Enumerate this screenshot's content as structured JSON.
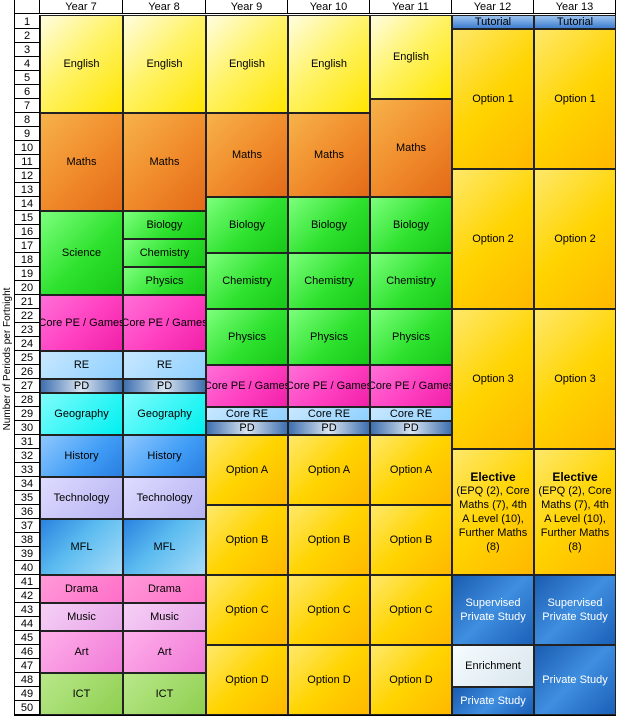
{
  "chart_data": {
    "type": "table",
    "ylabel": "Number of Periods per Fortnight",
    "columns": [
      "Year 7",
      "Year 8",
      "Year 9",
      "Year 10",
      "Year 11",
      "Year 12",
      "Year 13"
    ],
    "periods": [
      "1",
      "2",
      "3",
      "4",
      "5",
      "6",
      "7",
      "8",
      "9",
      "10",
      "11",
      "12",
      "13",
      "14",
      "15",
      "16",
      "17",
      "18",
      "19",
      "20",
      "21",
      "22",
      "23",
      "24",
      "25",
      "26",
      "27",
      "28",
      "29",
      "30",
      "31",
      "32",
      "33",
      "34",
      "35",
      "36",
      "37",
      "38",
      "39",
      "40",
      "41",
      "42",
      "43",
      "44",
      "45",
      "46",
      "47",
      "48",
      "49",
      "50"
    ],
    "blocks": [
      {
        "col": 0,
        "start": 1,
        "end": 7,
        "label": "English",
        "style": "english"
      },
      {
        "col": 0,
        "start": 8,
        "end": 14,
        "label": "Maths",
        "style": "maths"
      },
      {
        "col": 0,
        "start": 15,
        "end": 20,
        "label": "Science",
        "style": "green"
      },
      {
        "col": 0,
        "start": 21,
        "end": 24,
        "label": "Core PE / Games",
        "style": "pe"
      },
      {
        "col": 0,
        "start": 25,
        "end": 26,
        "label": "RE",
        "style": "re"
      },
      {
        "col": 0,
        "start": 27,
        "end": 27,
        "label": "PD",
        "style": "pd"
      },
      {
        "col": 0,
        "start": 28,
        "end": 30,
        "label": "Geography",
        "style": "geo"
      },
      {
        "col": 0,
        "start": 31,
        "end": 33,
        "label": "History",
        "style": "history"
      },
      {
        "col": 0,
        "start": 34,
        "end": 36,
        "label": "Technology",
        "style": "tech"
      },
      {
        "col": 0,
        "start": 37,
        "end": 40,
        "label": "MFL",
        "style": "mfl"
      },
      {
        "col": 0,
        "start": 41,
        "end": 42,
        "label": "Drama",
        "style": "drama"
      },
      {
        "col": 0,
        "start": 43,
        "end": 44,
        "label": "Music",
        "style": "music"
      },
      {
        "col": 0,
        "start": 45,
        "end": 47,
        "label": "Art",
        "style": "art"
      },
      {
        "col": 0,
        "start": 48,
        "end": 50,
        "label": "ICT",
        "style": "ict"
      },
      {
        "col": 1,
        "start": 1,
        "end": 7,
        "label": "English",
        "style": "english"
      },
      {
        "col": 1,
        "start": 8,
        "end": 14,
        "label": "Maths",
        "style": "maths"
      },
      {
        "col": 1,
        "start": 15,
        "end": 16,
        "label": "Biology",
        "style": "green"
      },
      {
        "col": 1,
        "start": 17,
        "end": 18,
        "label": "Chemistry",
        "style": "green"
      },
      {
        "col": 1,
        "start": 19,
        "end": 20,
        "label": "Physics",
        "style": "green"
      },
      {
        "col": 1,
        "start": 21,
        "end": 24,
        "label": "Core PE / Games",
        "style": "pe"
      },
      {
        "col": 1,
        "start": 25,
        "end": 26,
        "label": "RE",
        "style": "re"
      },
      {
        "col": 1,
        "start": 27,
        "end": 27,
        "label": "PD",
        "style": "pd"
      },
      {
        "col": 1,
        "start": 28,
        "end": 30,
        "label": "Geography",
        "style": "geo"
      },
      {
        "col": 1,
        "start": 31,
        "end": 33,
        "label": "History",
        "style": "history"
      },
      {
        "col": 1,
        "start": 34,
        "end": 36,
        "label": "Technology",
        "style": "tech"
      },
      {
        "col": 1,
        "start": 37,
        "end": 40,
        "label": "MFL",
        "style": "mfl"
      },
      {
        "col": 1,
        "start": 41,
        "end": 42,
        "label": "Drama",
        "style": "drama"
      },
      {
        "col": 1,
        "start": 43,
        "end": 44,
        "label": "Music",
        "style": "music"
      },
      {
        "col": 1,
        "start": 45,
        "end": 47,
        "label": "Art",
        "style": "art"
      },
      {
        "col": 1,
        "start": 48,
        "end": 50,
        "label": "ICT",
        "style": "ict"
      },
      {
        "col": 2,
        "start": 1,
        "end": 7,
        "label": "English",
        "style": "english"
      },
      {
        "col": 2,
        "start": 8,
        "end": 13,
        "label": "Maths",
        "style": "maths"
      },
      {
        "col": 2,
        "start": 14,
        "end": 17,
        "label": "Biology",
        "style": "green"
      },
      {
        "col": 2,
        "start": 18,
        "end": 21,
        "label": "Chemistry",
        "style": "green"
      },
      {
        "col": 2,
        "start": 22,
        "end": 25,
        "label": "Physics",
        "style": "green"
      },
      {
        "col": 2,
        "start": 26,
        "end": 28,
        "label": "Core PE / Games",
        "style": "pe"
      },
      {
        "col": 2,
        "start": 29,
        "end": 29,
        "label": "Core RE",
        "style": "re"
      },
      {
        "col": 2,
        "start": 30,
        "end": 30,
        "label": "PD",
        "style": "pd"
      },
      {
        "col": 2,
        "start": 31,
        "end": 35,
        "label": "Option A",
        "style": "option"
      },
      {
        "col": 2,
        "start": 36,
        "end": 40,
        "label": "Option B",
        "style": "option"
      },
      {
        "col": 2,
        "start": 41,
        "end": 45,
        "label": "Option C",
        "style": "option"
      },
      {
        "col": 2,
        "start": 46,
        "end": 50,
        "label": "Option D",
        "style": "option"
      },
      {
        "col": 3,
        "start": 1,
        "end": 7,
        "label": "English",
        "style": "english"
      },
      {
        "col": 3,
        "start": 8,
        "end": 13,
        "label": "Maths",
        "style": "maths"
      },
      {
        "col": 3,
        "start": 14,
        "end": 17,
        "label": "Biology",
        "style": "green"
      },
      {
        "col": 3,
        "start": 18,
        "end": 21,
        "label": "Chemistry",
        "style": "green"
      },
      {
        "col": 3,
        "start": 22,
        "end": 25,
        "label": "Physics",
        "style": "green"
      },
      {
        "col": 3,
        "start": 26,
        "end": 28,
        "label": "Core PE / Games",
        "style": "pe"
      },
      {
        "col": 3,
        "start": 29,
        "end": 29,
        "label": "Core RE",
        "style": "re"
      },
      {
        "col": 3,
        "start": 30,
        "end": 30,
        "label": "PD",
        "style": "pd"
      },
      {
        "col": 3,
        "start": 31,
        "end": 35,
        "label": "Option A",
        "style": "option"
      },
      {
        "col": 3,
        "start": 36,
        "end": 40,
        "label": "Option B",
        "style": "option"
      },
      {
        "col": 3,
        "start": 41,
        "end": 45,
        "label": "Option C",
        "style": "option"
      },
      {
        "col": 3,
        "start": 46,
        "end": 50,
        "label": "Option D",
        "style": "option"
      },
      {
        "col": 4,
        "start": 1,
        "end": 6,
        "label": "English",
        "style": "english"
      },
      {
        "col": 4,
        "start": 7,
        "end": 13,
        "label": "Maths",
        "style": "maths"
      },
      {
        "col": 4,
        "start": 14,
        "end": 17,
        "label": "Biology",
        "style": "green"
      },
      {
        "col": 4,
        "start": 18,
        "end": 21,
        "label": "Chemistry",
        "style": "green"
      },
      {
        "col": 4,
        "start": 22,
        "end": 25,
        "label": "Physics",
        "style": "green"
      },
      {
        "col": 4,
        "start": 26,
        "end": 28,
        "label": "Core PE / Games",
        "style": "pe"
      },
      {
        "col": 4,
        "start": 29,
        "end": 29,
        "label": "Core RE",
        "style": "re"
      },
      {
        "col": 4,
        "start": 30,
        "end": 30,
        "label": "PD",
        "style": "pd"
      },
      {
        "col": 4,
        "start": 31,
        "end": 35,
        "label": "Option A",
        "style": "option"
      },
      {
        "col": 4,
        "start": 36,
        "end": 40,
        "label": "Option B",
        "style": "option"
      },
      {
        "col": 4,
        "start": 41,
        "end": 45,
        "label": "Option C",
        "style": "option"
      },
      {
        "col": 4,
        "start": 46,
        "end": 50,
        "label": "Option D",
        "style": "option"
      },
      {
        "col": 5,
        "start": 1,
        "end": 1,
        "label": "Tutorial",
        "style": "tutorial"
      },
      {
        "col": 5,
        "start": 2,
        "end": 11,
        "label": "Option 1",
        "style": "option"
      },
      {
        "col": 5,
        "start": 12,
        "end": 21,
        "label": "Option 2",
        "style": "option"
      },
      {
        "col": 5,
        "start": 22,
        "end": 31,
        "label": "Option 3",
        "style": "option"
      },
      {
        "col": 5,
        "start": 32,
        "end": 40,
        "label": "Elective",
        "sub": "(EPQ (2), Core Maths (7), 4th A Level (10), Further Maths (8)",
        "style": "option"
      },
      {
        "col": 5,
        "start": 41,
        "end": 45,
        "label": "Supervised Private Study",
        "style": "blue"
      },
      {
        "col": 5,
        "start": 46,
        "end": 48,
        "label": "Enrichment",
        "style": "enrich"
      },
      {
        "col": 5,
        "start": 49,
        "end": 50,
        "label": "Private Study",
        "style": "blue"
      },
      {
        "col": 6,
        "start": 1,
        "end": 1,
        "label": "Tutorial",
        "style": "tutorial"
      },
      {
        "col": 6,
        "start": 2,
        "end": 11,
        "label": "Option 1",
        "style": "option"
      },
      {
        "col": 6,
        "start": 12,
        "end": 21,
        "label": "Option 2",
        "style": "option"
      },
      {
        "col": 6,
        "start": 22,
        "end": 31,
        "label": "Option 3",
        "style": "option"
      },
      {
        "col": 6,
        "start": 32,
        "end": 40,
        "label": "Elective",
        "sub": "(EPQ (2), Core Maths (7), 4th A Level (10), Further Maths (8)",
        "style": "option"
      },
      {
        "col": 6,
        "start": 41,
        "end": 45,
        "label": "Supervised Private Study",
        "style": "blue"
      },
      {
        "col": 6,
        "start": 46,
        "end": 50,
        "label": "Private Study",
        "style": "blue"
      }
    ]
  },
  "colors": {
    "english": "#fff36a",
    "maths": "#f08a2a",
    "green": "#2fe22f",
    "pe": "#ff3fc0",
    "re": "#8fd0ff",
    "pd": "#7fa0c8",
    "geo": "#00f0f0",
    "history": "#3f9cf5",
    "tech": "#b6b2f2",
    "mfl": "#5cbcf0",
    "drama": "#ff6ec8",
    "music": "#e8a6e8",
    "art": "#f07ad8",
    "ict": "#8fcf50",
    "option": "#ffd400",
    "tutorial": "#4f8fd8",
    "blue": "#2a72c8",
    "enrich": "#d8e6ec"
  }
}
